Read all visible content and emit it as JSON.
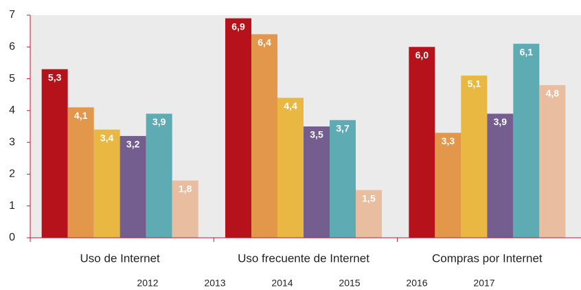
{
  "chart_data": {
    "type": "bar",
    "categories": [
      "Uso de Internet",
      "Uso frecuente de Internet",
      "Compras por Internet"
    ],
    "series": [
      {
        "name": "2012",
        "color": "#b5121b",
        "values": [
          5.3,
          6.9,
          6.0
        ],
        "value_labels": [
          "5,3",
          "6,9",
          "6,0"
        ]
      },
      {
        "name": "2013",
        "color": "#e3974b",
        "values": [
          4.1,
          6.4,
          3.3
        ],
        "value_labels": [
          "4,1",
          "6,4",
          "3,3"
        ]
      },
      {
        "name": "2014",
        "color": "#e8b843",
        "values": [
          3.4,
          4.4,
          5.1
        ],
        "value_labels": [
          "3,4",
          "4,4",
          "5,1"
        ]
      },
      {
        "name": "2015",
        "color": "#735e8f",
        "values": [
          3.2,
          3.5,
          3.9
        ],
        "value_labels": [
          "3,2",
          "3,5",
          "3,9"
        ]
      },
      {
        "name": "2016",
        "color": "#5fabb3",
        "values": [
          3.9,
          3.7,
          6.1
        ],
        "value_labels": [
          "3,9",
          "3,7",
          "6,1"
        ]
      },
      {
        "name": "2017",
        "color": "#e9bea0",
        "values": [
          1.8,
          1.5,
          4.8
        ],
        "value_labels": [
          "1,8",
          "1,5",
          "4,8"
        ]
      }
    ],
    "ylim": [
      0,
      7
    ],
    "yticks": [
      0,
      1,
      2,
      3,
      4,
      5,
      6,
      7
    ],
    "grid": false
  }
}
